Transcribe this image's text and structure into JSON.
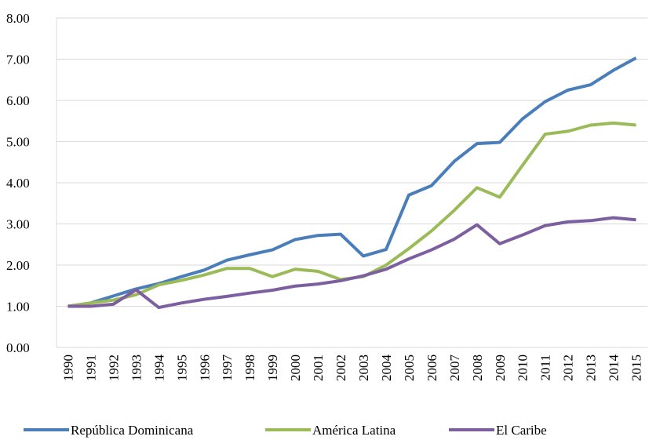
{
  "chart_data": {
    "type": "line",
    "categories": [
      "1990",
      "1991",
      "1992",
      "1993",
      "1994",
      "1995",
      "1996",
      "1997",
      "1998",
      "1999",
      "2000",
      "2001",
      "2002",
      "2003",
      "2004",
      "2005",
      "2006",
      "2007",
      "2008",
      "2009",
      "2010",
      "2011",
      "2012",
      "2013",
      "2014",
      "2015"
    ],
    "series": [
      {
        "name": "República Dominicana",
        "color": "#4a7ebb",
        "values": [
          1.0,
          1.08,
          1.25,
          1.42,
          1.55,
          1.72,
          1.88,
          2.12,
          2.25,
          2.37,
          2.62,
          2.72,
          2.75,
          2.22,
          2.38,
          3.7,
          3.93,
          4.52,
          4.95,
          4.98,
          5.55,
          5.97,
          6.25,
          6.38,
          6.73,
          7.03
        ]
      },
      {
        "name": "América Latina",
        "color": "#9bbb59",
        "values": [
          1.0,
          1.08,
          1.15,
          1.28,
          1.52,
          1.63,
          1.76,
          1.92,
          1.92,
          1.72,
          1.9,
          1.85,
          1.65,
          1.72,
          2.0,
          2.4,
          2.83,
          3.33,
          3.88,
          3.65,
          4.42,
          5.18,
          5.25,
          5.4,
          5.45,
          5.4
        ]
      },
      {
        "name": "El Caribe",
        "color": "#7d5fa0",
        "values": [
          1.0,
          1.0,
          1.05,
          1.4,
          0.97,
          1.08,
          1.17,
          1.24,
          1.32,
          1.39,
          1.49,
          1.54,
          1.62,
          1.74,
          1.9,
          2.15,
          2.37,
          2.63,
          2.98,
          2.52,
          2.73,
          2.96,
          3.05,
          3.08,
          3.15,
          3.1
        ]
      }
    ],
    "ylim": [
      0,
      8
    ],
    "yticks": [
      {
        "value": 0,
        "label": "0.00"
      },
      {
        "value": 1,
        "label": "1.00"
      },
      {
        "value": 2,
        "label": "2.00"
      },
      {
        "value": 3,
        "label": "3.00"
      },
      {
        "value": 4,
        "label": "4.00"
      },
      {
        "value": 5,
        "label": "5.00"
      },
      {
        "value": 6,
        "label": "6.00"
      },
      {
        "value": 7,
        "label": "7.00"
      },
      {
        "value": 8,
        "label": "8.00"
      }
    ],
    "grid": true,
    "legend": "bottom"
  }
}
